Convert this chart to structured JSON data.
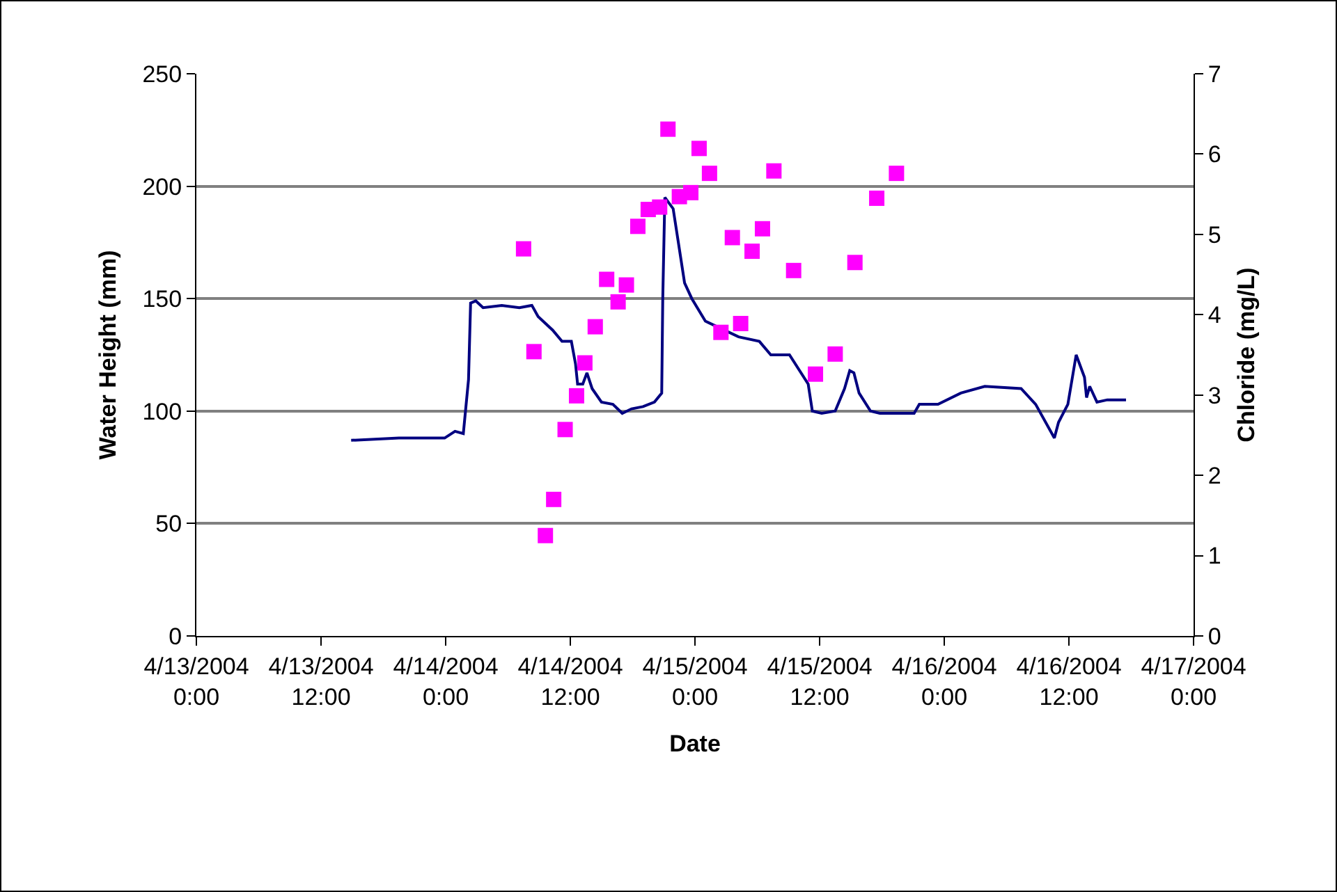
{
  "chart_data": {
    "type": "line",
    "xlabel": "Date",
    "ylabel": "Water Height (mm)",
    "y2label": "Chloride (mg/L)",
    "xlim": [
      "2004-04-13T00:00",
      "2004-04-17T00:00"
    ],
    "xticks": [
      {
        "value": "2004-04-13T00:00",
        "label": "4/13/2004 0:00"
      },
      {
        "value": "2004-04-13T12:00",
        "label": "4/13/2004 12:00"
      },
      {
        "value": "2004-04-14T00:00",
        "label": "4/14/2004 0:00"
      },
      {
        "value": "2004-04-14T12:00",
        "label": "4/14/2004 12:00"
      },
      {
        "value": "2004-04-15T00:00",
        "label": "4/15/2004 0:00"
      },
      {
        "value": "2004-04-15T12:00",
        "label": "4/15/2004 12:00"
      },
      {
        "value": "2004-04-16T00:00",
        "label": "4/16/2004 0:00"
      },
      {
        "value": "2004-04-16T12:00",
        "label": "4/16/2004 12:00"
      },
      {
        "value": "2004-04-17T00:00",
        "label": "4/17/2004 0:00"
      }
    ],
    "ylim": [
      0,
      250
    ],
    "yticks": [
      0,
      50,
      100,
      150,
      200,
      250
    ],
    "y2lim": [
      0,
      7
    ],
    "y2ticks": [
      0,
      1,
      2,
      3,
      4,
      5,
      6,
      7
    ],
    "grid": "y",
    "series": [
      {
        "color": "#000080",
        "marker": "none",
        "line_style": "solid",
        "x": [
          "2004-04-13T14:54",
          "2004-04-13T19:30",
          "2004-04-13T23:54",
          "2004-04-14T00:54",
          "2004-04-14T01:42",
          "2004-04-14T02:12",
          "2004-04-14T02:24",
          "2004-04-14T02:54",
          "2004-04-14T03:36",
          "2004-04-14T05:24",
          "2004-04-14T07:06",
          "2004-04-14T08:18",
          "2004-04-14T08:54",
          "2004-04-14T10:18",
          "2004-04-14T11:12",
          "2004-04-14T12:06",
          "2004-04-14T12:30",
          "2004-04-14T12:42",
          "2004-04-14T13:12",
          "2004-04-14T13:36",
          "2004-04-14T14:06",
          "2004-04-14T15:00",
          "2004-04-14T16:06",
          "2004-04-14T17:00",
          "2004-04-14T17:54",
          "2004-04-14T19:00",
          "2004-04-14T20:06",
          "2004-04-14T20:48",
          "2004-04-14T20:54",
          "2004-04-14T21:06",
          "2004-04-14T21:54",
          "2004-04-14T22:24",
          "2004-04-14T23:00",
          "2004-04-14T23:42",
          "2004-04-15T01:00",
          "2004-04-15T04:12",
          "2004-04-15T06:12",
          "2004-04-15T07:18",
          "2004-04-15T09:06",
          "2004-04-15T10:54",
          "2004-04-15T11:18",
          "2004-04-15T12:12",
          "2004-04-15T13:30",
          "2004-04-15T14:24",
          "2004-04-15T14:54",
          "2004-04-15T15:18",
          "2004-04-15T15:48",
          "2004-04-15T16:54",
          "2004-04-15T17:48",
          "2004-04-15T21:06",
          "2004-04-15T21:36",
          "2004-04-15T23:24",
          "2004-04-16T01:36",
          "2004-04-16T03:54",
          "2004-04-16T07:24",
          "2004-04-16T08:48",
          "2004-04-16T10:36",
          "2004-04-16T11:00",
          "2004-04-16T11:54",
          "2004-04-16T12:42",
          "2004-04-16T13:30",
          "2004-04-16T13:42",
          "2004-04-16T14:00",
          "2004-04-16T14:42",
          "2004-04-16T15:42",
          "2004-04-16T17:30"
        ],
        "values": [
          87,
          88,
          88,
          91,
          90,
          114,
          148,
          149,
          146,
          147,
          146,
          147,
          142,
          136,
          131,
          131,
          121,
          112,
          112,
          117,
          110,
          104,
          103,
          99,
          101,
          102,
          104,
          108,
          150,
          195,
          190,
          175,
          157,
          150,
          140,
          133,
          131,
          125,
          125,
          112,
          100,
          99,
          100,
          110,
          118,
          117,
          108,
          100,
          99,
          99,
          103,
          103,
          108,
          111,
          110,
          103,
          88,
          95,
          103,
          125,
          115,
          106,
          111,
          104,
          105,
          105
        ]
      },
      {
        "type": "scatter",
        "axis": "y2",
        "color": "#ff00ff",
        "marker": "square",
        "x": [
          "2004-04-14T07:30",
          "2004-04-14T08:30",
          "2004-04-14T09:36",
          "2004-04-14T10:24",
          "2004-04-14T11:30",
          "2004-04-14T12:36",
          "2004-04-14T13:24",
          "2004-04-14T14:24",
          "2004-04-14T15:30",
          "2004-04-14T16:36",
          "2004-04-14T17:24",
          "2004-04-14T18:30",
          "2004-04-14T19:30",
          "2004-04-14T20:36",
          "2004-04-14T21:24",
          "2004-04-14T22:30",
          "2004-04-14T23:36",
          "2004-04-15T00:24",
          "2004-04-15T01:24",
          "2004-04-15T02:30",
          "2004-04-15T03:36",
          "2004-04-15T04:24",
          "2004-04-15T05:30",
          "2004-04-15T06:30",
          "2004-04-15T07:36",
          "2004-04-15T09:30",
          "2004-04-15T11:36",
          "2004-04-15T13:30",
          "2004-04-15T15:24",
          "2004-04-15T17:30",
          "2004-04-15T19:24"
        ],
        "values": [
          4.82,
          3.54,
          1.25,
          1.7,
          2.57,
          2.99,
          3.4,
          3.85,
          4.44,
          4.16,
          4.37,
          5.1,
          5.31,
          5.34,
          6.31,
          5.47,
          5.52,
          6.07,
          5.76,
          3.78,
          4.96,
          3.89,
          4.79,
          5.07,
          5.79,
          4.55,
          3.26,
          3.51,
          4.65,
          5.45,
          5.76
        ]
      }
    ]
  }
}
